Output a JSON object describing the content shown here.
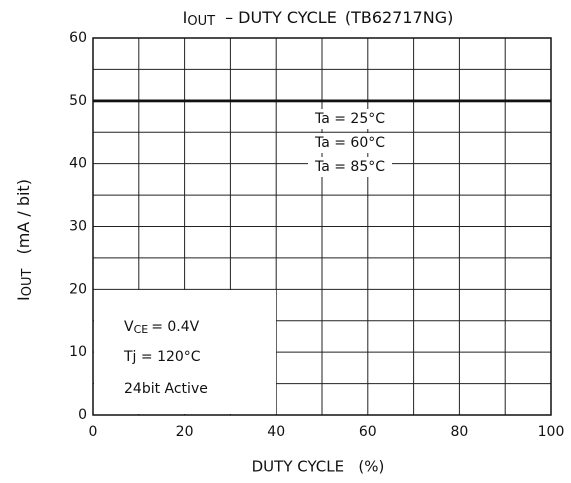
{
  "chart_data": {
    "type": "line",
    "title": {
      "main": "I",
      "sub": "OUT",
      "rest": "–  DUTY CYCLE",
      "part": "(TB62717NG)"
    },
    "xlabel": "DUTY CYCLE   (%)",
    "ylabel": {
      "main": "I",
      "sub": "OUT",
      "rest": "(mA / bit)"
    },
    "x": [
      0,
      100
    ],
    "series": [
      {
        "name": "Ta = 25°C",
        "color": "#111111",
        "values": [
          50,
          50
        ]
      },
      {
        "name": "Ta = 60°C",
        "color": "#111111",
        "values": [
          50,
          50
        ]
      },
      {
        "name": "Ta = 85°C",
        "color": "#111111",
        "values": [
          50,
          50
        ]
      }
    ],
    "xlim": [
      0,
      100
    ],
    "xticks": [
      0,
      20,
      40,
      60,
      80,
      100
    ],
    "xminor": [
      10,
      30,
      50,
      70,
      90
    ],
    "ylim": [
      0,
      60
    ],
    "yticks": [
      0,
      10,
      20,
      30,
      40,
      50,
      60
    ],
    "yminor": [
      5,
      15,
      25,
      35,
      45,
      55
    ],
    "grid": true,
    "annotations": [
      {
        "main": "V",
        "sub": "CE",
        "rest": "= 0.4V"
      },
      {
        "text": "Tj = 120°C"
      },
      {
        "text": "24bit Active"
      }
    ]
  }
}
